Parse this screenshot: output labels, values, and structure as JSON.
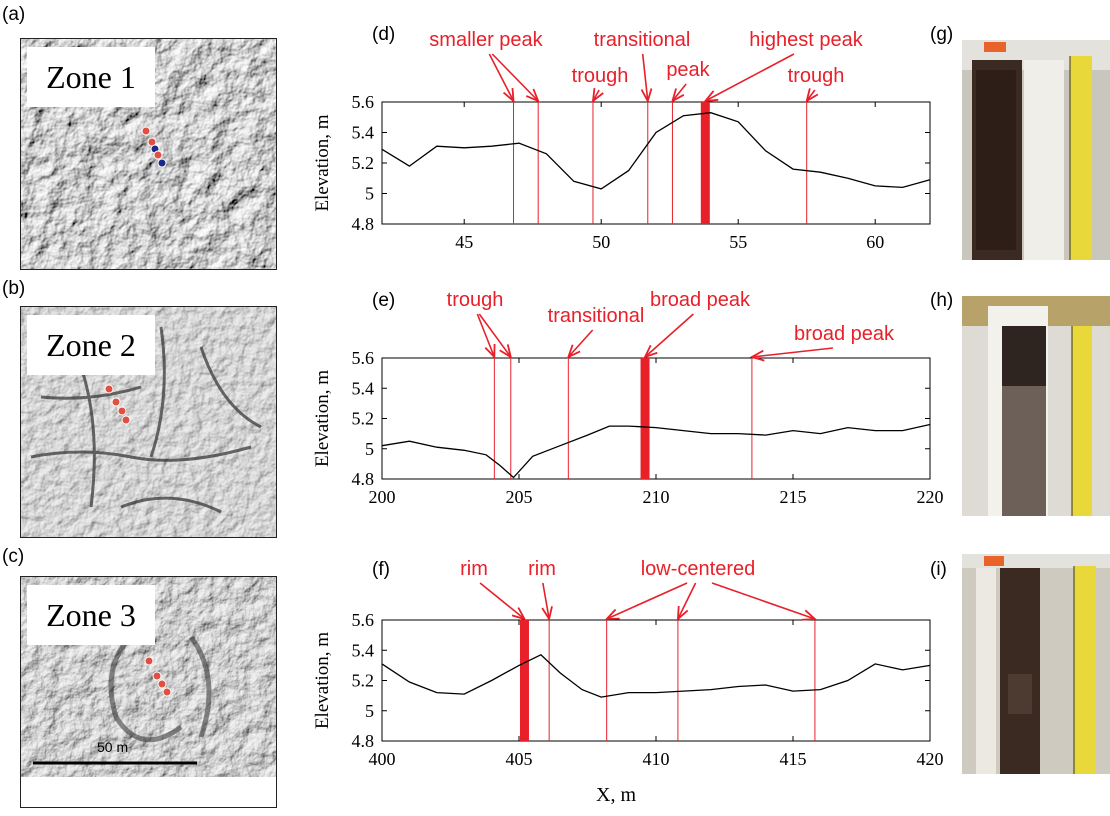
{
  "panel_labels": {
    "a": "(a)",
    "b": "(b)",
    "c": "(c)",
    "d": "(d)",
    "e": "(e)",
    "f": "(f)",
    "g": "(g)",
    "h": "(h)",
    "i": "(i)"
  },
  "zones": [
    "Zone 1",
    "Zone 2",
    "Zone 3"
  ],
  "scale_bar_label": "50 m",
  "shared_xlabel": "X, m",
  "colors": {
    "annotation": "#e8202a",
    "profile": "#000000",
    "sample_point": "#e05040",
    "sample_point_alt": "#1a2a8a"
  },
  "chart_data": [
    {
      "type": "line",
      "panel": "(d)",
      "ylabel": "Elevation, m",
      "xlim": [
        42,
        62
      ],
      "ylim": [
        4.8,
        5.6
      ],
      "xticks": [
        45,
        50,
        55,
        60
      ],
      "yticks": [
        4.8,
        5,
        5.2,
        5.4,
        5.6
      ],
      "x": [
        42,
        43,
        44,
        45,
        46,
        47,
        48,
        49,
        50,
        51,
        52,
        53,
        54,
        55,
        56,
        57,
        58,
        59,
        60,
        61,
        62
      ],
      "y": [
        5.29,
        5.18,
        5.31,
        5.3,
        5.31,
        5.33,
        5.26,
        5.08,
        5.03,
        5.15,
        5.4,
        5.51,
        5.53,
        5.47,
        5.28,
        5.16,
        5.14,
        5.1,
        5.05,
        5.04,
        5.09
      ],
      "markers": [
        {
          "x": 46.8,
          "bold": false
        },
        {
          "x": 47.7,
          "bold": false
        },
        {
          "x": 49.7,
          "bold": false
        },
        {
          "x": 51.7,
          "bold": false
        },
        {
          "x": 52.6,
          "bold": false
        },
        {
          "x": 53.8,
          "bold": true
        },
        {
          "x": 57.5,
          "bold": false
        }
      ],
      "annotations": [
        {
          "text": "smaller peak",
          "targets": [
            46.8,
            47.7
          ]
        },
        {
          "text": "trough",
          "targets": [
            49.7
          ]
        },
        {
          "text": "transitional",
          "targets": [
            51.7
          ]
        },
        {
          "text": "peak",
          "targets": [
            52.6
          ]
        },
        {
          "text": "highest peak",
          "targets": [
            53.8
          ]
        },
        {
          "text": "trough",
          "targets": [
            57.5
          ]
        }
      ]
    },
    {
      "type": "line",
      "panel": "(e)",
      "ylabel": "Elevation, m",
      "xlim": [
        200,
        220
      ],
      "ylim": [
        4.8,
        5.6
      ],
      "xticks": [
        200,
        205,
        210,
        215,
        220
      ],
      "yticks": [
        4.8,
        5,
        5.2,
        5.4,
        5.6
      ],
      "x": [
        200,
        201,
        202,
        203,
        203.8,
        204.3,
        204.8,
        205.5,
        206.5,
        207.5,
        208.3,
        209,
        210,
        211,
        212,
        213,
        214,
        215,
        216,
        217,
        218,
        219,
        220
      ],
      "y": [
        5.02,
        5.05,
        5.01,
        4.99,
        4.96,
        4.89,
        4.81,
        4.95,
        5.02,
        5.09,
        5.15,
        5.15,
        5.14,
        5.12,
        5.1,
        5.1,
        5.09,
        5.12,
        5.1,
        5.14,
        5.12,
        5.12,
        5.16
      ],
      "markers": [
        {
          "x": 204.1,
          "bold": false
        },
        {
          "x": 204.7,
          "bold": false
        },
        {
          "x": 206.8,
          "bold": false
        },
        {
          "x": 209.6,
          "bold": true
        },
        {
          "x": 213.5,
          "bold": false
        }
      ],
      "annotations": [
        {
          "text": "trough",
          "targets": [
            204.1,
            204.7
          ]
        },
        {
          "text": "transitional",
          "targets": [
            206.8
          ]
        },
        {
          "text": "broad peak",
          "targets": [
            209.6
          ]
        },
        {
          "text": "broad peak",
          "targets": [
            213.5
          ]
        }
      ]
    },
    {
      "type": "line",
      "panel": "(f)",
      "ylabel": "Elevation, m",
      "xlim": [
        400,
        420
      ],
      "ylim": [
        4.8,
        5.6
      ],
      "xticks": [
        400,
        405,
        410,
        415,
        420
      ],
      "yticks": [
        4.8,
        5,
        5.2,
        5.4,
        5.6
      ],
      "x": [
        400,
        401,
        402,
        403,
        404,
        405,
        405.8,
        406.5,
        407.3,
        408,
        409,
        410,
        411,
        412,
        413,
        414,
        415,
        416,
        417,
        418,
        419,
        420
      ],
      "y": [
        5.31,
        5.19,
        5.12,
        5.11,
        5.2,
        5.3,
        5.37,
        5.25,
        5.14,
        5.09,
        5.12,
        5.12,
        5.13,
        5.14,
        5.16,
        5.17,
        5.13,
        5.14,
        5.2,
        5.31,
        5.27,
        5.3
      ],
      "markers": [
        {
          "x": 405.2,
          "bold": true
        },
        {
          "x": 406.1,
          "bold": false
        },
        {
          "x": 408.2,
          "bold": false
        },
        {
          "x": 410.8,
          "bold": false
        },
        {
          "x": 415.8,
          "bold": false
        }
      ],
      "annotations": [
        {
          "text": "rim",
          "targets": [
            405.2
          ]
        },
        {
          "text": "rim",
          "targets": [
            406.1
          ]
        },
        {
          "text": "low-centered",
          "targets": [
            408.2,
            410.8,
            415.8
          ]
        }
      ]
    }
  ]
}
